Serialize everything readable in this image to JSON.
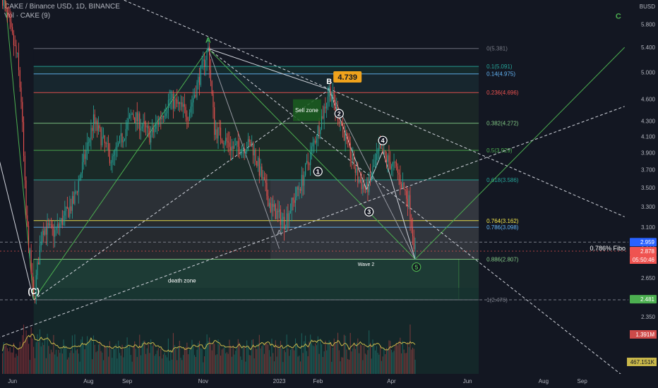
{
  "header": {
    "symbol_line": "CAKE / Binance USD, 1D, BINANCE",
    "indicator_line": "Vol · CAKE (9)",
    "currency": "BUSD"
  },
  "colors": {
    "background": "#131722",
    "up": "#26a69a",
    "down": "#ef5350",
    "volume_ma": "#c9b84a",
    "green_line": "#4caf50",
    "fib_1": "#787b86",
    "fib_0786": "#64b5f6",
    "fib_0764": "#f5e94a",
    "fib_0236": "#ef5350"
  },
  "chart_data": {
    "type": "candlestick",
    "symbol": "CAKE / Binance USD",
    "interval": "1D",
    "exchange": "BINANCE",
    "price_axis": {
      "scale": "log",
      "range": [
        1.97,
        6.25
      ],
      "ticks": [
        5.8,
        5.4,
        5.0,
        4.6,
        4.3,
        4.1,
        3.9,
        3.7,
        3.5,
        3.3,
        3.1,
        2.9,
        2.65,
        2.35,
        2.23,
        2.03
      ]
    },
    "time_axis": {
      "range": [
        "2022-05-22",
        "2023-10-08"
      ],
      "tick_labels": [
        "Jun",
        "Aug",
        "Sep",
        "Nov",
        "2023",
        "Feb",
        "Apr",
        "Jun",
        "Aug",
        "Sep"
      ],
      "tick_dates": [
        "2022-06-01",
        "2022-08-01",
        "2022-09-01",
        "2022-11-01",
        "2023-01-01",
        "2023-02-01",
        "2023-04-01",
        "2023-06-01",
        "2023-08-01",
        "2023-09-01"
      ]
    },
    "anchors": [
      {
        "date": "2022-05-24",
        "price": 6.3
      },
      {
        "date": "2022-06-05",
        "price": 5.2
      },
      {
        "date": "2022-06-08",
        "price": 4.6
      },
      {
        "date": "2022-06-12",
        "price": 3.2
      },
      {
        "date": "2022-06-18",
        "price": 2.476
      },
      {
        "date": "2022-06-25",
        "price": 3.1
      },
      {
        "date": "2022-07-05",
        "price": 3.05
      },
      {
        "date": "2022-07-20",
        "price": 3.35
      },
      {
        "date": "2022-08-05",
        "price": 4.3
      },
      {
        "date": "2022-08-20",
        "price": 3.8
      },
      {
        "date": "2022-09-05",
        "price": 4.4
      },
      {
        "date": "2022-09-20",
        "price": 4.1
      },
      {
        "date": "2022-10-05",
        "price": 4.6
      },
      {
        "date": "2022-10-20",
        "price": 4.4
      },
      {
        "date": "2022-11-05",
        "price": 5.381
      },
      {
        "date": "2022-11-10",
        "price": 4.2
      },
      {
        "date": "2022-11-25",
        "price": 3.95
      },
      {
        "date": "2022-12-10",
        "price": 4.0
      },
      {
        "date": "2022-12-25",
        "price": 3.3
      },
      {
        "date": "2023-01-05",
        "price": 3.15
      },
      {
        "date": "2023-01-20",
        "price": 3.6
      },
      {
        "date": "2023-02-05",
        "price": 4.4
      },
      {
        "date": "2023-02-10",
        "price": 4.739
      },
      {
        "date": "2023-02-20",
        "price": 4.25
      },
      {
        "date": "2023-03-05",
        "price": 3.6
      },
      {
        "date": "2023-03-12",
        "price": 3.48
      },
      {
        "date": "2023-03-22",
        "price": 3.92
      },
      {
        "date": "2023-04-05",
        "price": 3.7
      },
      {
        "date": "2023-04-15",
        "price": 3.35
      },
      {
        "date": "2023-04-20",
        "price": 2.878
      }
    ],
    "last_price": 2.878,
    "current_price_label": "2.878",
    "countdown": "05:50:46",
    "fib_levels": [
      {
        "ratio": "0",
        "price": 5.381,
        "label": "0(5.381)",
        "color": "#787b86",
        "fill": "#131722"
      },
      {
        "ratio": "0.1",
        "price": 5.091,
        "label": "0.1(5.091)",
        "color": "#26a69a",
        "fill": "#152a2c"
      },
      {
        "ratio": "0.14",
        "price": 4.975,
        "label": "0.14(4.975)",
        "color": "#64b5f6",
        "fill": "#17262e"
      },
      {
        "ratio": "0.236",
        "price": 4.696,
        "label": "0.236(4.696)",
        "color": "#ef5350",
        "fill": "#1a2626"
      },
      {
        "ratio": "0.382",
        "price": 4.272,
        "label": "0.382(4.272)",
        "color": "#81c784",
        "fill": "#1c2a26"
      },
      {
        "ratio": "0.5",
        "price": 3.929,
        "label": "0.5(3.929)",
        "color": "#4caf50",
        "fill": "#1a2a27"
      },
      {
        "ratio": "0.618",
        "price": 3.586,
        "label": "0.618(3.586)",
        "color": "#26a69a",
        "fill": "#2b3036"
      },
      {
        "ratio": "0.764",
        "price": 3.162,
        "label": "0.764(3.162)",
        "color": "#f5e94a",
        "fill": "#262a2f"
      },
      {
        "ratio": "0.786",
        "price": 3.098,
        "label": "0.786(3.098)",
        "color": "#64b5f6",
        "fill": "#262a2f"
      },
      {
        "ratio": "0.886",
        "price": 2.807,
        "label": "0.886(2.807)",
        "color": "#81c784",
        "fill": "#1b3430"
      },
      {
        "ratio": "1",
        "price": 2.476,
        "label": "1(2.476)",
        "color": "#787b86",
        "fill": "#131722"
      }
    ],
    "price_tags": [
      {
        "label": "2.959",
        "price": 2.959,
        "bg": "#2962ff",
        "fg": "#ffffff"
      },
      {
        "label": "2.878",
        "price": 2.878,
        "bg": "#ef5350",
        "fg": "#ffffff"
      },
      {
        "label": "2.481",
        "price": 2.481,
        "bg": "#4caf50",
        "fg": "#ffffff"
      }
    ],
    "hline_label": "0.786% Fibo",
    "hline_price": 2.959,
    "zones": [
      {
        "label": "Sell zone",
        "price": 4.45
      },
      {
        "label": "death zone",
        "price": 2.63
      }
    ],
    "wave_points": [
      {
        "label": "A",
        "date": "2022-11-05",
        "price": 5.381,
        "style": "letter-green"
      },
      {
        "label": "B",
        "date": "2023-02-10",
        "price": 4.739,
        "style": "letter-white"
      },
      {
        "label": "A",
        "date": "2023-01-01",
        "price": 2.97,
        "style": "letter-grey"
      },
      {
        "label": "(C)",
        "date": "2022-06-18",
        "price": 2.476,
        "style": "letter-white"
      },
      {
        "label": "C",
        "date": "2023-09-30",
        "price": 5.8,
        "style": "letter-green"
      },
      {
        "label": "1",
        "date": "2023-02-01",
        "price": 3.68,
        "style": "circle-white"
      },
      {
        "label": "2",
        "date": "2023-02-18",
        "price": 4.4,
        "style": "circle-white"
      },
      {
        "label": "3",
        "date": "2023-03-14",
        "price": 3.25,
        "style": "circle-white"
      },
      {
        "label": "4",
        "date": "2023-03-25",
        "price": 4.05,
        "style": "circle-white"
      },
      {
        "label": "5",
        "date": "2023-04-21",
        "price": 2.74,
        "style": "circle-green"
      }
    ],
    "peak_label": "4.739",
    "wave_note": "Wave 2",
    "volume": {
      "label": "Vol",
      "last": "1.391M",
      "ma": "467.151K"
    }
  }
}
